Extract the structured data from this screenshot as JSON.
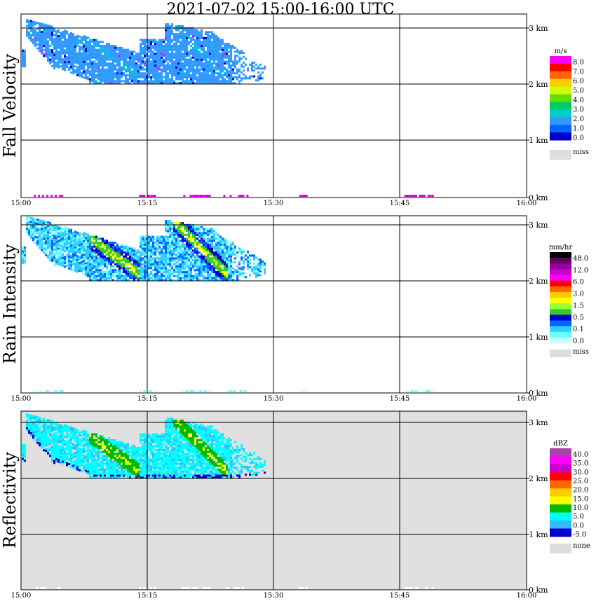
{
  "title": "2021-07-02   15:00-16:00 UTC",
  "x_ticks": [
    "15:00",
    "15:15",
    "15:30",
    "15:45",
    "16:00"
  ],
  "y_ticks": [
    "0 km",
    "1 km",
    "2 km",
    "3 km"
  ],
  "chart_data": [
    {
      "type": "heatmap",
      "title": "Fall Velocity",
      "colorbar_unit": "m/s",
      "colorbar_ticks": [
        "8.0",
        "7.0",
        "6.0",
        "5.0",
        "4.0",
        "3.0",
        "2.0",
        "1.0",
        "0.0"
      ],
      "colorbar_missing_label": "miss",
      "colorbar_colors": [
        "#ff00ff",
        "#ff0000",
        "#ff6600",
        "#ffcc00",
        "#ccff00",
        "#66dd00",
        "#00cc66",
        "#00cccc",
        "#3399ff",
        "#0066ff",
        "#0000cc"
      ],
      "background": "#ffffff",
      "x_range": [
        "15:00",
        "16:00"
      ],
      "y_range_km": [
        0,
        3.2
      ],
      "grid": true
    },
    {
      "type": "heatmap",
      "title": "Rain Intensity",
      "colorbar_unit": "mm/hr",
      "colorbar_ticks": [
        "48.0",
        "12.0",
        "6.0",
        "3.0",
        "1.5",
        "0.5",
        "0.1",
        "0.0"
      ],
      "colorbar_missing_label": "miss",
      "colorbar_colors": [
        "#000000",
        "#660066",
        "#990099",
        "#cc00cc",
        "#ff00ff",
        "#ff0000",
        "#ff6600",
        "#ffcc00",
        "#ffff00",
        "#99ff33",
        "#33cc33",
        "#0000cc",
        "#0066ff",
        "#33ccff",
        "#66ffff",
        "#ccffff"
      ],
      "background": "#ffffff",
      "x_range": [
        "15:00",
        "16:00"
      ],
      "y_range_km": [
        0,
        3.2
      ],
      "grid": true
    },
    {
      "type": "heatmap",
      "title": "Reflectivity",
      "colorbar_unit": "dBZ",
      "colorbar_ticks": [
        "40.0",
        "35.0",
        "30.0",
        "25.0",
        "20.0",
        "15.0",
        "10.0",
        "5.0",
        "0.0",
        "-5.0"
      ],
      "colorbar_missing_label": "none",
      "colorbar_colors": [
        "#aa44aa",
        "#ff00ff",
        "#cc00cc",
        "#ff0000",
        "#ff6600",
        "#ffcc00",
        "#ffff00",
        "#00bb00",
        "#00ffff",
        "#33bbff",
        "#0000cc"
      ],
      "background": "#e0e0e0",
      "x_range": [
        "15:00",
        "16:00"
      ],
      "y_range_km": [
        0,
        3.2
      ],
      "grid": true
    }
  ]
}
